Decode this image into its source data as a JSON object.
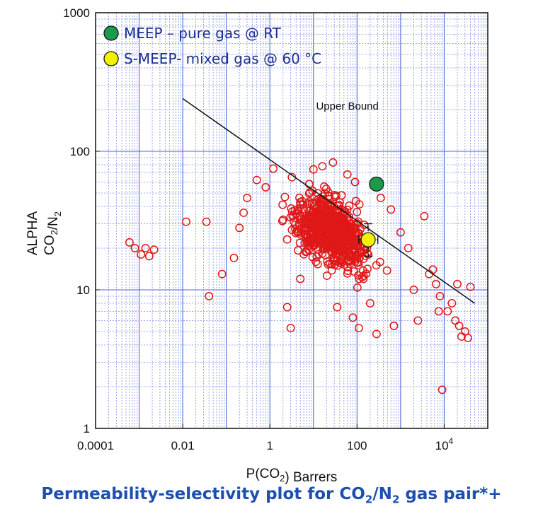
{
  "chart_data": {
    "type": "scatter",
    "title": "",
    "xlabel": "P(CO2) Barrers",
    "ylabel": "ALPHA CO2/N2",
    "x_scale": "log",
    "y_scale": "log",
    "xlim": [
      0.0001,
      100000
    ],
    "ylim": [
      1,
      1000
    ],
    "grid": true,
    "x_ticks": [
      "0.0001",
      "0.01",
      "1",
      "100",
      "10^4"
    ],
    "y_ticks": [
      "1",
      "10",
      "100",
      "1000"
    ],
    "legend_position": "top-left",
    "legend": [
      {
        "label": "MEEP – pure gas @ RT",
        "color": "#1a9a4a"
      },
      {
        "label": "S-MEEP- mixed gas @ 60 °C",
        "color": "#f2f200"
      }
    ],
    "series": [
      {
        "name": "MEEP – pure gas @ RT",
        "color": "#1a9a4a",
        "points": [
          {
            "x": 280,
            "y": 58
          }
        ]
      },
      {
        "name": "S-MEEP- mixed gas @ 60 °C",
        "color": "#f2f200",
        "points": [
          {
            "x": 180,
            "y": 23,
            "x_err": [
              110,
              300
            ],
            "y_err": [
              17.5,
              30
            ]
          }
        ]
      },
      {
        "name": "",
        "color": "#e01818",
        "points": [
          {
            "x": 0.0006,
            "y": 22
          },
          {
            "x": 0.0008,
            "y": 20
          },
          {
            "x": 0.0011,
            "y": 18
          },
          {
            "x": 0.0014,
            "y": 20
          },
          {
            "x": 0.0017,
            "y": 17.5
          },
          {
            "x": 0.0022,
            "y": 19.5
          },
          {
            "x": 0.012,
            "y": 31
          },
          {
            "x": 0.035,
            "y": 31
          },
          {
            "x": 0.04,
            "y": 9
          },
          {
            "x": 0.08,
            "y": 13
          },
          {
            "x": 0.15,
            "y": 17
          },
          {
            "x": 0.2,
            "y": 28
          },
          {
            "x": 0.25,
            "y": 36
          },
          {
            "x": 0.3,
            "y": 46
          },
          {
            "x": 0.5,
            "y": 62
          },
          {
            "x": 0.8,
            "y": 55
          },
          {
            "x": 1.2,
            "y": 75
          },
          {
            "x": 2.5,
            "y": 7.5
          },
          {
            "x": 3,
            "y": 5.3
          },
          {
            "x": 3.2,
            "y": 65
          },
          {
            "x": 5,
            "y": 12
          },
          {
            "x": 8,
            "y": 58
          },
          {
            "x": 10,
            "y": 74
          },
          {
            "x": 16,
            "y": 78
          },
          {
            "x": 28,
            "y": 83
          },
          {
            "x": 35,
            "y": 7.5
          },
          {
            "x": 60,
            "y": 68
          },
          {
            "x": 80,
            "y": 6.3
          },
          {
            "x": 90,
            "y": 60
          },
          {
            "x": 110,
            "y": 5.3
          },
          {
            "x": 140,
            "y": 12
          },
          {
            "x": 200,
            "y": 8
          },
          {
            "x": 280,
            "y": 4.8
          },
          {
            "x": 350,
            "y": 46
          },
          {
            "x": 600,
            "y": 38
          },
          {
            "x": 700,
            "y": 5.5
          },
          {
            "x": 1000,
            "y": 26
          },
          {
            "x": 1500,
            "y": 20
          },
          {
            "x": 2000,
            "y": 10
          },
          {
            "x": 2500,
            "y": 6
          },
          {
            "x": 3500,
            "y": 34
          },
          {
            "x": 4500,
            "y": 13
          },
          {
            "x": 5500,
            "y": 14
          },
          {
            "x": 6500,
            "y": 11
          },
          {
            "x": 7500,
            "y": 7
          },
          {
            "x": 8000,
            "y": 9
          },
          {
            "x": 9000,
            "y": 1.9
          },
          {
            "x": 12000,
            "y": 7
          },
          {
            "x": 15000,
            "y": 8
          },
          {
            "x": 18000,
            "y": 6
          },
          {
            "x": 20000,
            "y": 11
          },
          {
            "x": 22000,
            "y": 5.5
          },
          {
            "x": 25000,
            "y": 4.6
          },
          {
            "x": 30000,
            "y": 5
          },
          {
            "x": 35000,
            "y": 4.5
          },
          {
            "x": 40000,
            "y": 10.5
          }
        ]
      }
    ],
    "dense_cloud": {
      "log10_x_center": 1.4,
      "log10_x_spread": 1.05,
      "log10_y_center": 1.42,
      "log10_y_spread": 0.17,
      "slope": -0.1,
      "count": 700
    },
    "annotations": [
      {
        "text": "Upper Bound",
        "line": [
          {
            "x": 0.01,
            "y": 240
          },
          {
            "x": 50000,
            "y": 8
          }
        ],
        "label_at": {
          "x": 60,
          "y": 200
        }
      }
    ]
  },
  "caption": {
    "prefix": "Permeability-selectivity plot for CO",
    "sub1": "2",
    "middle": "/N",
    "sub2": "2",
    "suffix": " gas pair*+"
  }
}
